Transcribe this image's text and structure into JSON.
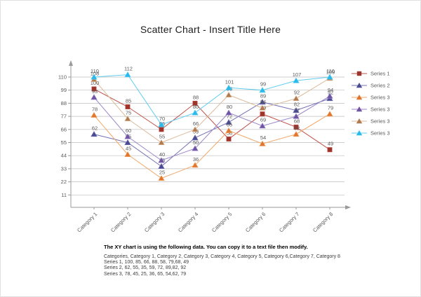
{
  "chart_data": {
    "type": "scatter",
    "title": "Scatter Chart - Insert Title Here",
    "categories": [
      "Category 1",
      "Category 2",
      "Category 3",
      "Category 4",
      "Category 5",
      "Category 6",
      "Category 7",
      "Category 8"
    ],
    "y_ticks": [
      110,
      99,
      88,
      77,
      66,
      55,
      44,
      33,
      22,
      11
    ],
    "ylim": [
      0,
      121
    ],
    "grid": true,
    "legend_position": "right",
    "axis_color": "#9a9a9a",
    "grid_color": "#bdbdbd",
    "label_color": "#595959",
    "series": [
      {
        "name": "Series 1",
        "marker": "square",
        "line_color": "#c0524a",
        "marker_color": "#9c342c",
        "values": [
          100,
          85,
          66,
          88,
          58,
          79,
          68,
          49
        ]
      },
      {
        "name": "Series 2",
        "marker": "triangle",
        "line_color": "#7472b4",
        "marker_color": "#4a4a93",
        "values": [
          62,
          55,
          35,
          59,
          72,
          89,
          82,
          92
        ]
      },
      {
        "name": "Series 3",
        "marker": "triangle",
        "line_color": "#f2a769",
        "marker_color": "#e0752e",
        "values": [
          78,
          45,
          25,
          36,
          65,
          54,
          62,
          79
        ]
      },
      {
        "name": "Series 3",
        "marker": "triangle",
        "line_color": "#9a86c8",
        "marker_color": "#6f54a4",
        "values": [
          93,
          60,
          40,
          50,
          80,
          69,
          77,
          94
        ]
      },
      {
        "name": "Series 3",
        "marker": "triangle",
        "line_color": "#dcbb9b",
        "marker_color": "#b07a4e",
        "values": [
          108,
          75,
          55,
          66,
          95,
          84,
          92,
          109
        ]
      },
      {
        "name": "Series 3",
        "marker": "triangle",
        "line_color": "#5fcdf2",
        "marker_color": "#29b9ea",
        "values": [
          110,
          112,
          70,
          80,
          101,
          99,
          107,
          110
        ]
      }
    ]
  },
  "note": {
    "heading": "The XY chart is using the following data. You can copy it to a text file then modify.",
    "lines": [
      "Categories, Category 1, Category 2, Category 3, Category 4, Category 5, Category 6,Category 7, Category 8",
      "Series 1, 100, 85, 66, 88, 58, 79,68, 49",
      "Series 2, 62, 55, 35, 59, 72, 89,82, 92",
      "Series 3, 78, 45, 25, 36, 65, 54,62, 79"
    ]
  }
}
